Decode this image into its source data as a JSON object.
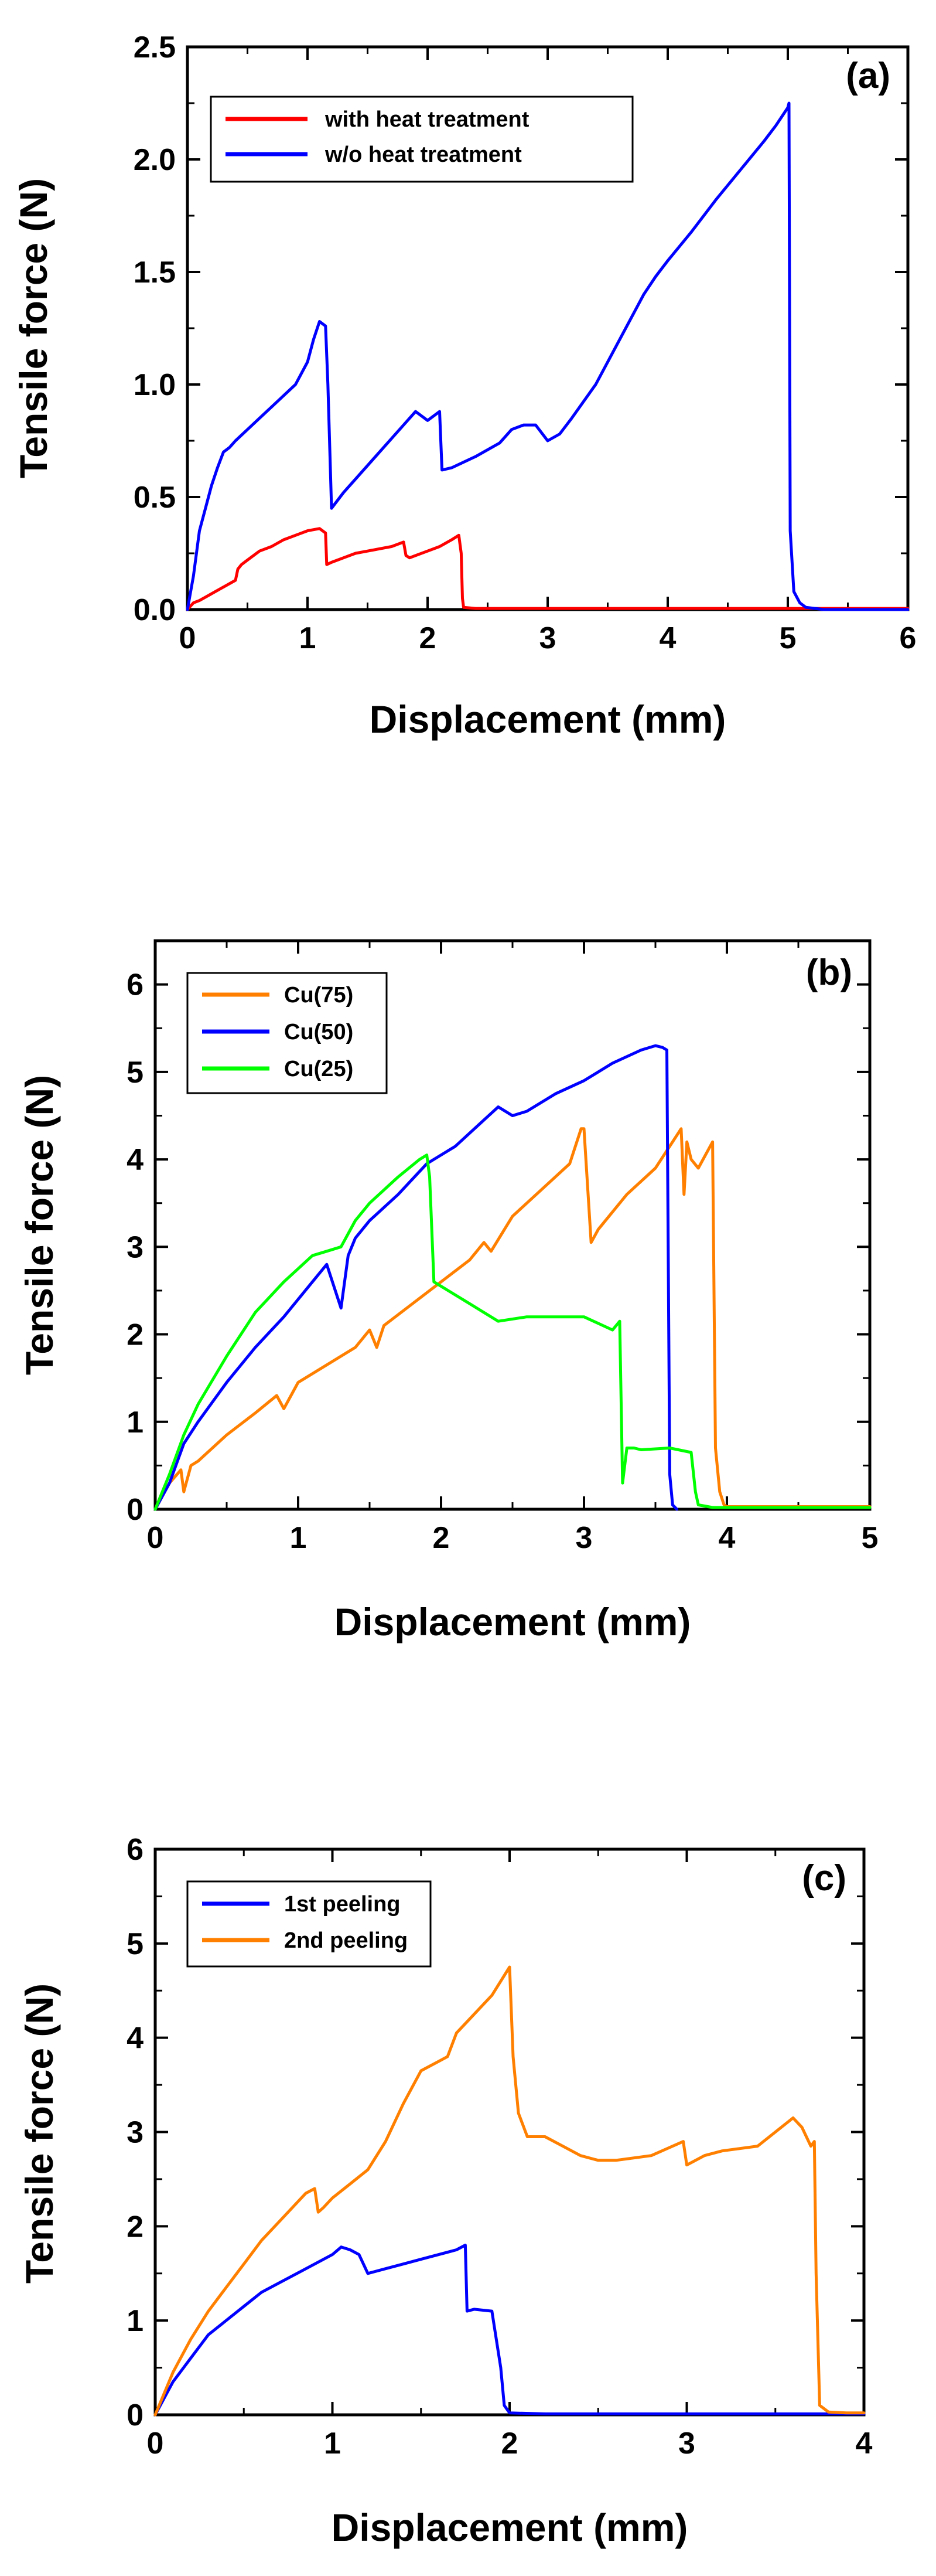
{
  "chart_data": [
    {
      "type": "line",
      "panel_label": "(a)",
      "xlabel": "Displacement (mm)",
      "ylabel": "Tensile force (N)",
      "xlim": [
        0,
        6
      ],
      "ylim": [
        0,
        2.5
      ],
      "xticks": [
        0,
        1,
        2,
        3,
        4,
        5,
        6
      ],
      "yticks": [
        0.0,
        0.5,
        1.0,
        1.5,
        2.0,
        2.5
      ],
      "xtick_labels": [
        "0",
        "1",
        "2",
        "3",
        "4",
        "5",
        "6"
      ],
      "ytick_labels": [
        "0.0",
        "0.5",
        "1.0",
        "1.5",
        "2.0",
        "2.5"
      ],
      "legend_position": "top-left",
      "series": [
        {
          "name": "with heat treatment",
          "color": "#ff0000",
          "x": [
            0,
            0.05,
            0.1,
            0.2,
            0.3,
            0.4,
            0.42,
            0.45,
            0.5,
            0.6,
            0.7,
            0.8,
            0.9,
            1.0,
            1.1,
            1.15,
            1.16,
            1.2,
            1.3,
            1.4,
            1.5,
            1.6,
            1.7,
            1.8,
            1.82,
            1.85,
            1.9,
            2.0,
            2.1,
            2.2,
            2.26,
            2.28,
            2.29,
            2.3,
            2.4,
            3.0,
            4.0,
            5.0,
            6.0
          ],
          "y": [
            0,
            0.03,
            0.04,
            0.07,
            0.1,
            0.13,
            0.18,
            0.2,
            0.22,
            0.26,
            0.28,
            0.31,
            0.33,
            0.35,
            0.36,
            0.34,
            0.2,
            0.21,
            0.23,
            0.25,
            0.26,
            0.27,
            0.28,
            0.3,
            0.24,
            0.23,
            0.24,
            0.26,
            0.28,
            0.31,
            0.33,
            0.25,
            0.05,
            0.01,
            0.005,
            0.005,
            0.005,
            0.005,
            0.005
          ]
        },
        {
          "name": "w/o heat treatment",
          "color": "#0000ff",
          "x": [
            0,
            0.05,
            0.1,
            0.15,
            0.2,
            0.25,
            0.3,
            0.35,
            0.4,
            0.5,
            0.6,
            0.7,
            0.8,
            0.9,
            1.0,
            1.05,
            1.1,
            1.15,
            1.17,
            1.2,
            1.3,
            1.4,
            1.6,
            1.8,
            1.9,
            1.95,
            2.0,
            2.1,
            2.12,
            2.2,
            2.4,
            2.6,
            2.7,
            2.8,
            2.9,
            3.0,
            3.1,
            3.2,
            3.4,
            3.6,
            3.8,
            3.9,
            4.0,
            4.2,
            4.4,
            4.6,
            4.8,
            4.9,
            5.0,
            5.01,
            5.02,
            5.05,
            5.1,
            5.15,
            5.3,
            6.0
          ],
          "y": [
            0,
            0.15,
            0.35,
            0.45,
            0.55,
            0.63,
            0.7,
            0.72,
            0.75,
            0.8,
            0.85,
            0.9,
            0.95,
            1.0,
            1.1,
            1.2,
            1.28,
            1.26,
            1.0,
            0.45,
            0.52,
            0.58,
            0.7,
            0.82,
            0.88,
            0.86,
            0.84,
            0.88,
            0.62,
            0.63,
            0.68,
            0.74,
            0.8,
            0.82,
            0.82,
            0.75,
            0.78,
            0.85,
            1.0,
            1.2,
            1.4,
            1.48,
            1.55,
            1.68,
            1.82,
            1.95,
            2.08,
            2.15,
            2.23,
            2.25,
            0.35,
            0.08,
            0.03,
            0.01,
            0.0,
            0.0
          ]
        }
      ]
    },
    {
      "type": "line",
      "panel_label": "(b)",
      "xlabel": "Displacement (mm)",
      "ylabel": "Tensile force (N)",
      "xlim": [
        0,
        5
      ],
      "ylim": [
        0,
        6.5
      ],
      "xticks": [
        0,
        1,
        2,
        3,
        4,
        5
      ],
      "yticks": [
        0,
        1,
        2,
        3,
        4,
        5,
        6
      ],
      "xtick_labels": [
        "0",
        "1",
        "2",
        "3",
        "4",
        "5"
      ],
      "ytick_labels": [
        "0",
        "1",
        "2",
        "3",
        "4",
        "5",
        "6"
      ],
      "legend_position": "top-left",
      "series": [
        {
          "name": "Cu(75)",
          "color": "#ff8000",
          "x": [
            0,
            0.1,
            0.18,
            0.2,
            0.25,
            0.3,
            0.5,
            0.7,
            0.85,
            0.9,
            0.95,
            1.0,
            1.2,
            1.4,
            1.5,
            1.55,
            1.6,
            1.8,
            2.0,
            2.2,
            2.3,
            2.35,
            2.5,
            2.7,
            2.9,
            2.98,
            3.0,
            3.05,
            3.1,
            3.3,
            3.5,
            3.68,
            3.7,
            3.72,
            3.75,
            3.8,
            3.9,
            3.92,
            3.95,
            3.98,
            4.0,
            5.0
          ],
          "y": [
            0,
            0.3,
            0.45,
            0.2,
            0.5,
            0.55,
            0.85,
            1.1,
            1.3,
            1.15,
            1.3,
            1.45,
            1.65,
            1.85,
            2.05,
            1.85,
            2.1,
            2.35,
            2.6,
            2.85,
            3.05,
            2.95,
            3.35,
            3.65,
            3.95,
            4.35,
            4.35,
            3.05,
            3.2,
            3.6,
            3.9,
            4.35,
            3.6,
            4.2,
            4.0,
            3.9,
            4.2,
            0.7,
            0.2,
            0.05,
            0.03,
            0.03
          ]
        },
        {
          "name": "Cu(50)",
          "color": "#0000ff",
          "x": [
            0,
            0.1,
            0.2,
            0.3,
            0.5,
            0.7,
            0.9,
            1.1,
            1.2,
            1.3,
            1.35,
            1.4,
            1.5,
            1.7,
            1.9,
            2.1,
            2.3,
            2.4,
            2.5,
            2.6,
            2.8,
            3.0,
            3.2,
            3.4,
            3.5,
            3.55,
            3.58,
            3.6,
            3.62,
            3.65
          ],
          "y": [
            0,
            0.3,
            0.75,
            1.0,
            1.45,
            1.85,
            2.2,
            2.6,
            2.8,
            2.3,
            2.9,
            3.1,
            3.3,
            3.6,
            3.95,
            4.15,
            4.45,
            4.6,
            4.5,
            4.55,
            4.75,
            4.9,
            5.1,
            5.25,
            5.3,
            5.28,
            5.25,
            0.4,
            0.05,
            0.0
          ]
        },
        {
          "name": "Cu(25)",
          "color": "#00ff00",
          "x": [
            0,
            0.1,
            0.2,
            0.3,
            0.5,
            0.7,
            0.9,
            1.1,
            1.2,
            1.3,
            1.4,
            1.5,
            1.7,
            1.85,
            1.9,
            1.92,
            1.95,
            2.0,
            2.2,
            2.4,
            2.6,
            2.8,
            3.0,
            3.2,
            3.25,
            3.27,
            3.3,
            3.35,
            3.4,
            3.6,
            3.75,
            3.78,
            3.8,
            3.9,
            5.0
          ],
          "y": [
            0,
            0.4,
            0.85,
            1.2,
            1.75,
            2.25,
            2.6,
            2.9,
            2.95,
            3.0,
            3.3,
            3.5,
            3.8,
            4.0,
            4.05,
            3.8,
            2.6,
            2.55,
            2.35,
            2.15,
            2.2,
            2.2,
            2.2,
            2.05,
            2.15,
            0.3,
            0.7,
            0.7,
            0.68,
            0.7,
            0.65,
            0.2,
            0.05,
            0.02,
            0.02
          ]
        }
      ]
    },
    {
      "type": "line",
      "panel_label": "(c)",
      "xlabel": "Displacement (mm)",
      "ylabel": "Tensile force (N)",
      "xlim": [
        0,
        4
      ],
      "ylim": [
        0,
        6
      ],
      "xticks": [
        0,
        1,
        2,
        3,
        4
      ],
      "yticks": [
        0,
        1,
        2,
        3,
        4,
        5,
        6
      ],
      "xtick_labels": [
        "0",
        "1",
        "2",
        "3",
        "4"
      ],
      "ytick_labels": [
        "0",
        "1",
        "2",
        "3",
        "4",
        "5",
        "6"
      ],
      "legend_position": "top-left",
      "series": [
        {
          "name": "1st peeling",
          "color": "#0000ff",
          "x": [
            0,
            0.1,
            0.2,
            0.3,
            0.4,
            0.5,
            0.6,
            0.7,
            0.8,
            0.9,
            1.0,
            1.05,
            1.1,
            1.15,
            1.2,
            1.3,
            1.4,
            1.5,
            1.6,
            1.7,
            1.75,
            1.76,
            1.8,
            1.9,
            1.95,
            1.97,
            2.0,
            2.2,
            2.5,
            4.0
          ],
          "y": [
            0,
            0.35,
            0.6,
            0.85,
            1.0,
            1.15,
            1.3,
            1.4,
            1.5,
            1.6,
            1.7,
            1.78,
            1.75,
            1.7,
            1.5,
            1.55,
            1.6,
            1.65,
            1.7,
            1.75,
            1.8,
            1.1,
            1.12,
            1.1,
            0.5,
            0.1,
            0.02,
            0.01,
            0.01,
            0.01
          ]
        },
        {
          "name": "2nd peeling",
          "color": "#ff8000",
          "x": [
            0,
            0.1,
            0.2,
            0.3,
            0.4,
            0.5,
            0.6,
            0.7,
            0.8,
            0.85,
            0.9,
            0.92,
            0.95,
            1.0,
            1.1,
            1.2,
            1.3,
            1.4,
            1.5,
            1.6,
            1.65,
            1.7,
            1.8,
            1.9,
            2.0,
            2.02,
            2.05,
            2.1,
            2.2,
            2.3,
            2.4,
            2.5,
            2.6,
            2.8,
            2.98,
            3.0,
            3.1,
            3.2,
            3.4,
            3.6,
            3.65,
            3.7,
            3.72,
            3.73,
            3.75,
            3.8,
            3.9,
            4.0
          ],
          "y": [
            0,
            0.45,
            0.8,
            1.1,
            1.35,
            1.6,
            1.85,
            2.05,
            2.25,
            2.35,
            2.4,
            2.15,
            2.2,
            2.3,
            2.45,
            2.6,
            2.9,
            3.3,
            3.65,
            3.75,
            3.8,
            4.05,
            4.25,
            4.45,
            4.75,
            3.8,
            3.2,
            2.95,
            2.95,
            2.85,
            2.75,
            2.7,
            2.7,
            2.75,
            2.9,
            2.65,
            2.75,
            2.8,
            2.85,
            3.15,
            3.05,
            2.85,
            2.9,
            1.5,
            0.1,
            0.03,
            0.02,
            0.02
          ]
        }
      ]
    }
  ]
}
